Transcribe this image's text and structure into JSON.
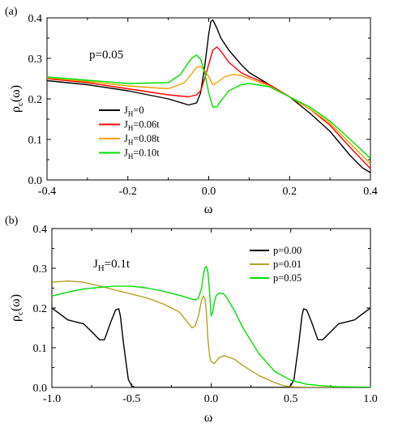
{
  "chart_data": [
    {
      "panel_label": "(a)",
      "type": "line",
      "annotation": "p=0.05",
      "xlabel": "ω",
      "ylabel": "ρc(ω)",
      "xlim": [
        -0.4,
        0.4
      ],
      "ylim": [
        0.0,
        0.4
      ],
      "xticks": [
        "-0.4",
        "-0.2",
        "0.0",
        "0.2",
        "0.4"
      ],
      "yticks": [
        "0.0",
        "0.1",
        "0.2",
        "0.3",
        "0.4"
      ],
      "xtick_values": [
        -0.4,
        -0.2,
        0.0,
        0.2,
        0.4
      ],
      "ytick_values": [
        0.0,
        0.1,
        0.2,
        0.3,
        0.4
      ],
      "legend_position": "lower-left",
      "grid": false,
      "series": [
        {
          "name": "JH=0",
          "name_base": "J",
          "name_sub": "H",
          "name_tail": "=0",
          "color": "#000000",
          "x": [
            -0.4,
            -0.3,
            -0.2,
            -0.1,
            -0.05,
            -0.03,
            -0.02,
            -0.01,
            0.0,
            0.005,
            0.01,
            0.02,
            0.03,
            0.05,
            0.08,
            0.1,
            0.15,
            0.2,
            0.25,
            0.3,
            0.35,
            0.38,
            0.4
          ],
          "y": [
            0.245,
            0.235,
            0.22,
            0.2,
            0.185,
            0.19,
            0.215,
            0.28,
            0.36,
            0.39,
            0.395,
            0.375,
            0.35,
            0.32,
            0.285,
            0.265,
            0.235,
            0.205,
            0.165,
            0.12,
            0.06,
            0.03,
            0.018
          ]
        },
        {
          "name": "JH=0.06t",
          "name_base": "J",
          "name_sub": "H",
          "name_tail": "=0.06t",
          "color": "#ff0000",
          "x": [
            -0.4,
            -0.3,
            -0.2,
            -0.1,
            -0.05,
            -0.03,
            -0.02,
            -0.01,
            0.0,
            0.01,
            0.02,
            0.03,
            0.05,
            0.08,
            0.1,
            0.15,
            0.2,
            0.25,
            0.3,
            0.35,
            0.4
          ],
          "y": [
            0.25,
            0.24,
            0.225,
            0.21,
            0.205,
            0.21,
            0.22,
            0.25,
            0.285,
            0.32,
            0.328,
            0.318,
            0.29,
            0.265,
            0.255,
            0.235,
            0.205,
            0.175,
            0.135,
            0.08,
            0.028
          ]
        },
        {
          "name": "JH=0.08t",
          "name_base": "J",
          "name_sub": "H",
          "name_tail": "=0.08t",
          "color": "#f0a000",
          "x": [
            -0.4,
            -0.3,
            -0.2,
            -0.1,
            -0.06,
            -0.04,
            -0.03,
            -0.02,
            -0.01,
            0.0,
            0.01,
            0.02,
            0.04,
            0.06,
            0.08,
            0.1,
            0.15,
            0.2,
            0.25,
            0.3,
            0.35,
            0.4
          ],
          "y": [
            0.252,
            0.243,
            0.232,
            0.225,
            0.24,
            0.265,
            0.278,
            0.28,
            0.27,
            0.255,
            0.235,
            0.24,
            0.255,
            0.26,
            0.258,
            0.25,
            0.232,
            0.205,
            0.175,
            0.14,
            0.09,
            0.04
          ]
        },
        {
          "name": "JH=0.10t",
          "name_base": "J",
          "name_sub": "H",
          "name_tail": "=0.10t",
          "color": "#00e000",
          "x": [
            -0.4,
            -0.3,
            -0.2,
            -0.1,
            -0.07,
            -0.05,
            -0.04,
            -0.03,
            -0.02,
            -0.01,
            0.0,
            0.01,
            0.02,
            0.03,
            0.05,
            0.08,
            0.1,
            0.15,
            0.2,
            0.25,
            0.3,
            0.35,
            0.4
          ],
          "y": [
            0.254,
            0.246,
            0.238,
            0.24,
            0.26,
            0.29,
            0.302,
            0.308,
            0.298,
            0.265,
            0.215,
            0.18,
            0.18,
            0.195,
            0.22,
            0.235,
            0.238,
            0.23,
            0.205,
            0.18,
            0.145,
            0.1,
            0.053
          ]
        }
      ]
    },
    {
      "panel_label": "(b)",
      "type": "line",
      "annotation": "JH=0.1t",
      "annotation_base": "J",
      "annotation_sub": "H",
      "annotation_tail": "=0.1t",
      "xlabel": "ω",
      "ylabel": "ρc(ω)",
      "xlim": [
        -1.0,
        1.0
      ],
      "ylim": [
        0.0,
        0.4
      ],
      "xticks": [
        "-1.0",
        "-0.5",
        "0.0",
        "0.5",
        "1.0"
      ],
      "yticks": [
        "0.0",
        "0.1",
        "0.2",
        "0.3",
        "0.4"
      ],
      "xtick_values": [
        -1.0,
        -0.5,
        0.0,
        0.5,
        1.0
      ],
      "ytick_values": [
        0.0,
        0.1,
        0.2,
        0.3,
        0.4
      ],
      "legend_position": "top-right",
      "grid": false,
      "series": [
        {
          "name": "p=0.00",
          "color": "#000000",
          "x": [
            -1.0,
            -0.95,
            -0.9,
            -0.85,
            -0.8,
            -0.75,
            -0.7,
            -0.67,
            -0.63,
            -0.6,
            -0.58,
            -0.57,
            -0.55,
            -0.53,
            -0.52,
            -0.5,
            -0.48,
            -0.4,
            0.0,
            0.4,
            0.48,
            0.5,
            0.52,
            0.53,
            0.55,
            0.57,
            0.58,
            0.6,
            0.63,
            0.67,
            0.7,
            0.75,
            0.8,
            0.85,
            0.9,
            0.95,
            1.0
          ],
          "y": [
            0.2,
            0.185,
            0.17,
            0.165,
            0.16,
            0.14,
            0.12,
            0.12,
            0.165,
            0.195,
            0.198,
            0.18,
            0.11,
            0.05,
            0.02,
            0.005,
            0.0,
            0.0,
            0.0,
            0.0,
            0.0,
            0.005,
            0.02,
            0.05,
            0.11,
            0.18,
            0.198,
            0.195,
            0.165,
            0.12,
            0.12,
            0.14,
            0.16,
            0.165,
            0.17,
            0.185,
            0.2
          ]
        },
        {
          "name": "p=0.01",
          "color": "#b8a020",
          "x": [
            -1.0,
            -0.9,
            -0.8,
            -0.7,
            -0.6,
            -0.5,
            -0.4,
            -0.3,
            -0.2,
            -0.15,
            -0.12,
            -0.1,
            -0.08,
            -0.06,
            -0.05,
            -0.04,
            -0.03,
            -0.02,
            -0.01,
            0.0,
            0.02,
            0.05,
            0.08,
            0.1,
            0.15,
            0.2,
            0.3,
            0.4,
            0.45,
            0.5,
            0.55,
            0.6,
            0.7,
            1.0
          ],
          "y": [
            0.265,
            0.268,
            0.265,
            0.255,
            0.245,
            0.235,
            0.225,
            0.21,
            0.19,
            0.165,
            0.15,
            0.155,
            0.18,
            0.22,
            0.23,
            0.225,
            0.19,
            0.12,
            0.08,
            0.065,
            0.06,
            0.075,
            0.08,
            0.078,
            0.07,
            0.055,
            0.03,
            0.012,
            0.005,
            0.002,
            0.001,
            0.0,
            0.0,
            0.0
          ]
        },
        {
          "name": "p=0.05",
          "color": "#00e000",
          "x": [
            -1.0,
            -0.9,
            -0.8,
            -0.7,
            -0.6,
            -0.5,
            -0.4,
            -0.3,
            -0.2,
            -0.1,
            -0.08,
            -0.06,
            -0.05,
            -0.04,
            -0.03,
            -0.02,
            -0.01,
            0.0,
            0.01,
            0.02,
            0.03,
            0.05,
            0.08,
            0.1,
            0.15,
            0.2,
            0.3,
            0.4,
            0.5,
            0.6,
            0.7,
            0.8,
            0.9,
            1.0
          ],
          "y": [
            0.23,
            0.24,
            0.248,
            0.252,
            0.255,
            0.255,
            0.25,
            0.242,
            0.232,
            0.22,
            0.225,
            0.25,
            0.28,
            0.3,
            0.305,
            0.29,
            0.24,
            0.18,
            0.19,
            0.215,
            0.23,
            0.238,
            0.235,
            0.225,
            0.19,
            0.15,
            0.085,
            0.04,
            0.018,
            0.008,
            0.004,
            0.002,
            0.001,
            0.0
          ]
        }
      ]
    }
  ]
}
